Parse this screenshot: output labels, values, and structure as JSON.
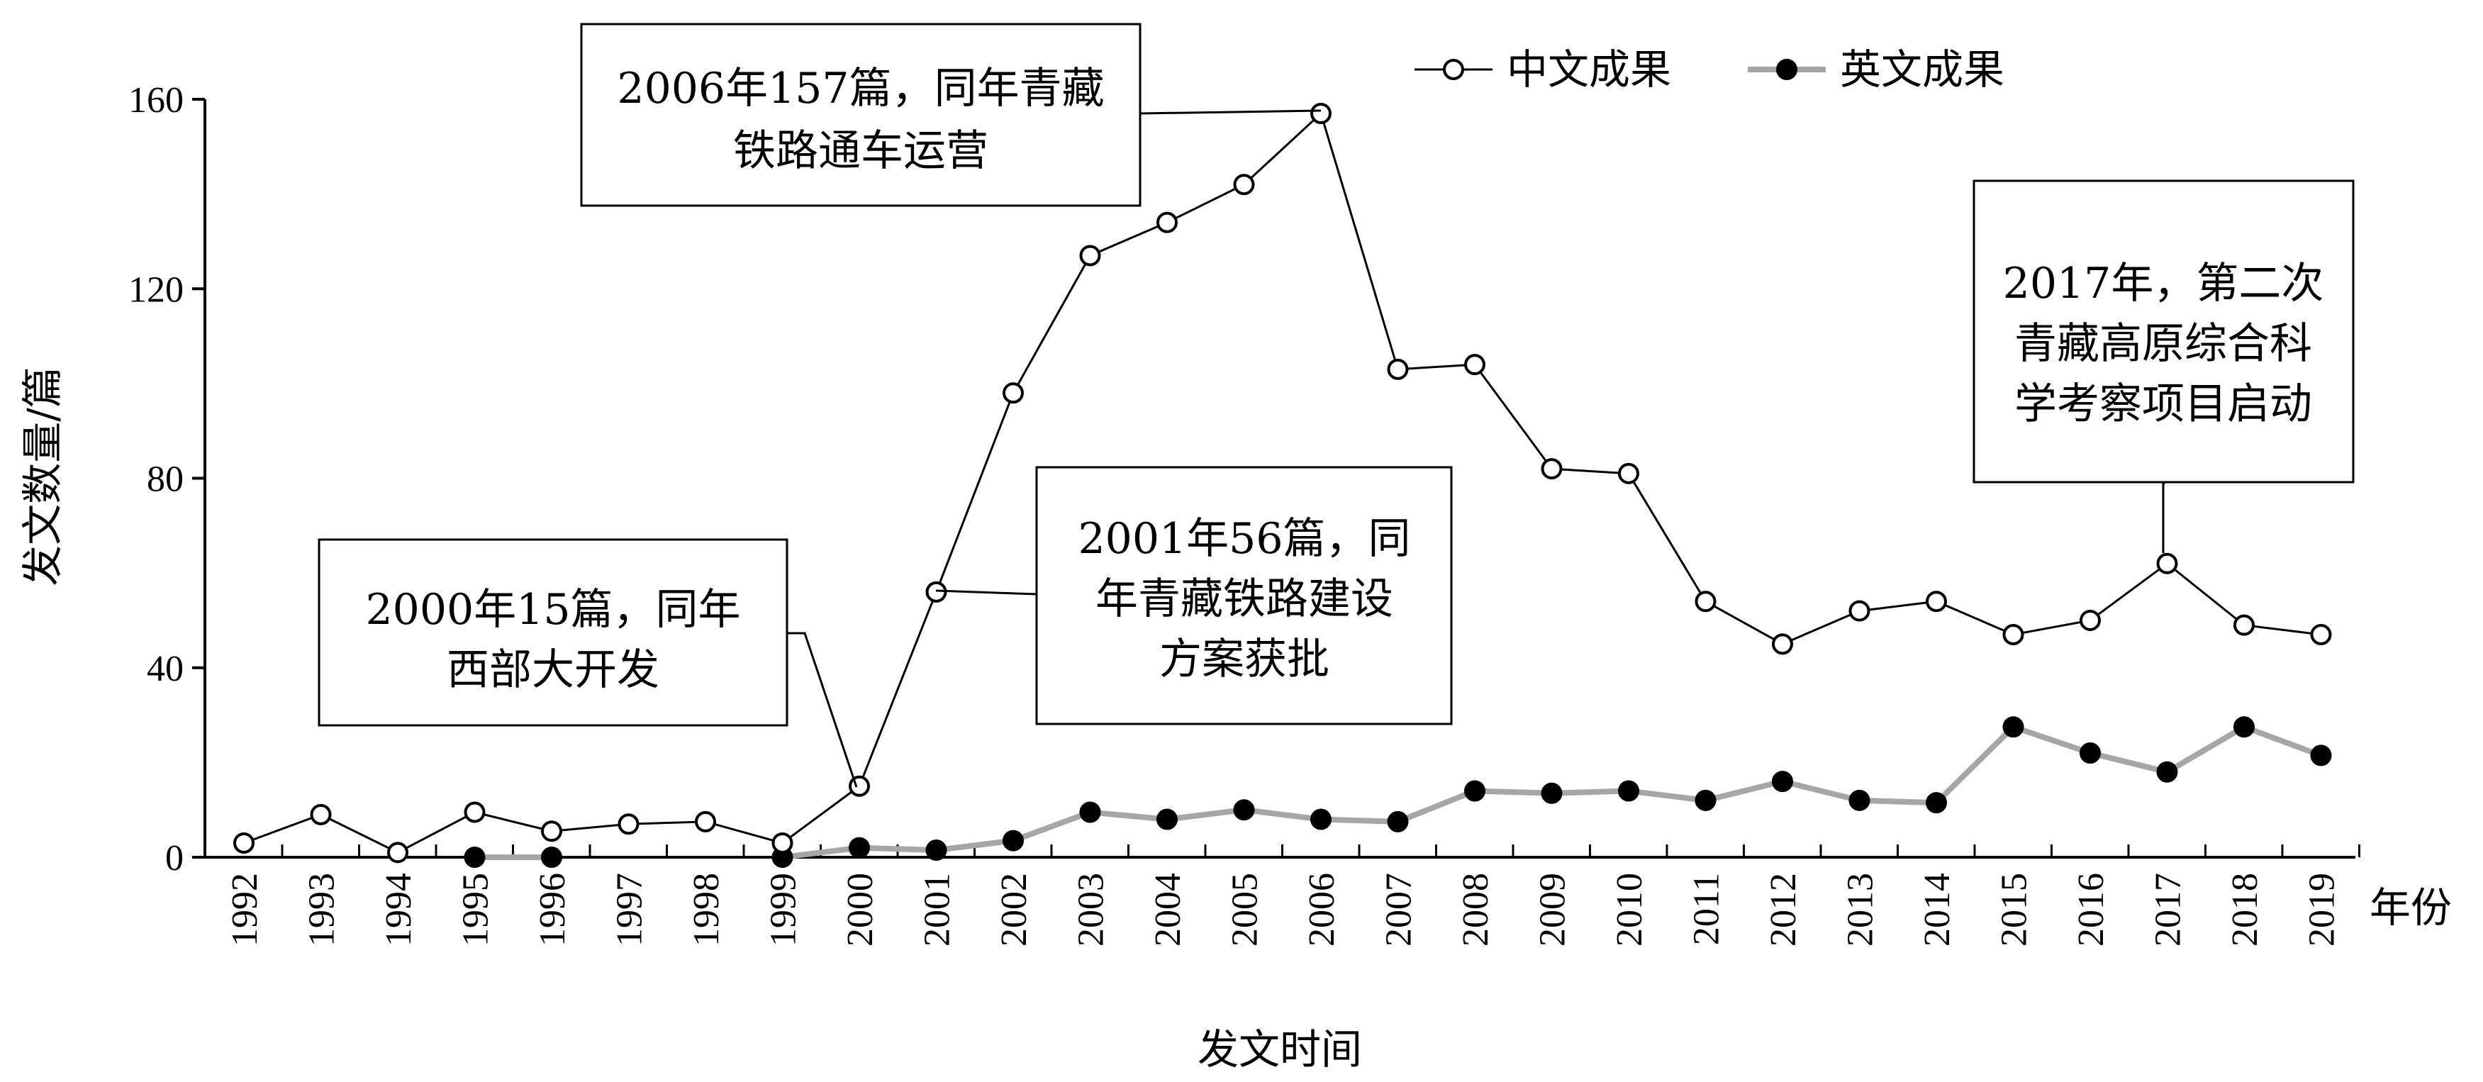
{
  "chart_data": {
    "type": "line",
    "xlabel": "发文时间",
    "xunit": "年份",
    "ylabel": "发文数量/篇",
    "ylim": [
      0,
      160
    ],
    "yticks": [
      0,
      40,
      80,
      120,
      160
    ],
    "categories": [
      "1992",
      "1993",
      "1994",
      "1995",
      "1996",
      "1997",
      "1998",
      "1999",
      "2000",
      "2001",
      "2002",
      "2003",
      "2004",
      "2005",
      "2006",
      "2007",
      "2008",
      "2009",
      "2010",
      "2011",
      "2012",
      "2013",
      "2014",
      "2015",
      "2016",
      "2017",
      "2018",
      "2019"
    ],
    "legend_position": "top-right",
    "series": [
      {
        "name": "中文成果",
        "marker": "open-circle",
        "color": "#000000",
        "values": [
          3,
          9,
          1,
          9.5,
          5.5,
          7,
          7.5,
          3,
          15,
          56,
          98,
          127,
          134,
          142,
          157,
          103,
          104,
          82,
          81,
          54,
          45,
          52,
          54,
          47,
          50,
          62,
          49,
          47
        ]
      },
      {
        "name": "英文成果",
        "marker": "filled-circle",
        "color": "#a6a6a6",
        "values": [
          null,
          null,
          null,
          0,
          0,
          null,
          null,
          0,
          2,
          1.5,
          3.5,
          9.5,
          8,
          10,
          8,
          7.5,
          14,
          13.5,
          14,
          12,
          16,
          12,
          11.5,
          27.5,
          22,
          18,
          27.5,
          21.5
        ]
      }
    ],
    "annotations": [
      {
        "lines": [
          "2006年157篇，同年青藏",
          "铁路通车运营"
        ]
      },
      {
        "lines": [
          "2001年56篇，同",
          "年青藏铁路建设",
          "方案获批"
        ]
      },
      {
        "lines": [
          "2000年15篇，同年",
          "西部大开发"
        ]
      },
      {
        "lines": [
          "2017年，第二次",
          "青藏高原综合科",
          "学考察项目启动"
        ]
      }
    ]
  }
}
